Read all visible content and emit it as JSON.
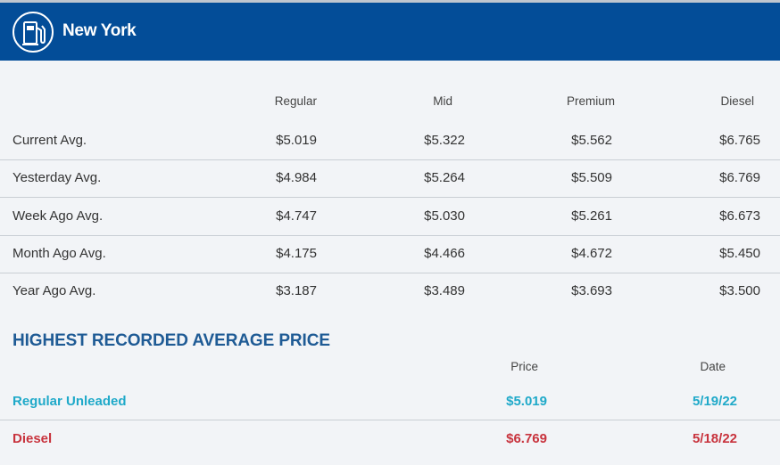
{
  "header": {
    "city": "New York",
    "icon": "gas-pump-icon",
    "bg_color": "#034d98"
  },
  "table": {
    "columns": [
      "Regular",
      "Mid",
      "Premium",
      "Diesel"
    ],
    "rows": [
      {
        "label": "Current Avg.",
        "values": [
          "$5.019",
          "$5.322",
          "$5.562",
          "$6.765"
        ]
      },
      {
        "label": "Yesterday Avg.",
        "values": [
          "$4.984",
          "$5.264",
          "$5.509",
          "$6.769"
        ]
      },
      {
        "label": "Week Ago Avg.",
        "values": [
          "$4.747",
          "$5.030",
          "$5.261",
          "$6.673"
        ]
      },
      {
        "label": "Month Ago Avg.",
        "values": [
          "$4.175",
          "$4.466",
          "$4.672",
          "$5.450"
        ]
      },
      {
        "label": "Year Ago Avg.",
        "values": [
          "$3.187",
          "$3.489",
          "$3.693",
          "$3.500"
        ]
      }
    ]
  },
  "highest": {
    "title": "HIGHEST RECORDED AVERAGE PRICE",
    "columns": [
      "Price",
      "Date"
    ],
    "rows": [
      {
        "label": "Regular Unleaded",
        "price": "$5.019",
        "date": "5/19/22",
        "color": "#1fa9c9"
      },
      {
        "label": "Diesel",
        "price": "$6.769",
        "date": "5/18/22",
        "color": "#c8333d"
      }
    ]
  }
}
